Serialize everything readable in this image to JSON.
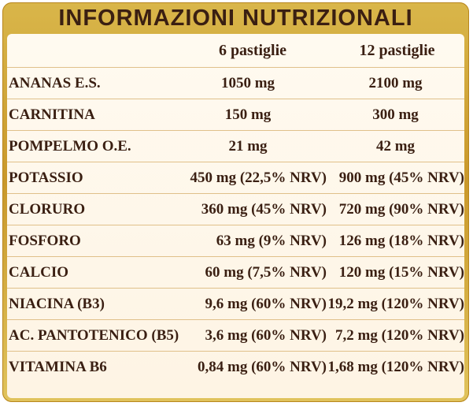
{
  "title": "INFORMAZIONI NUTRIZIONALI",
  "columns": [
    "6 pastiglie",
    "12 pastiglie"
  ],
  "rows": [
    {
      "name": "ANANAS E.S.",
      "v1": "1050 mg",
      "v2": "2100 mg"
    },
    {
      "name": "CARNITINA",
      "v1": "150 mg",
      "v2": "300 mg"
    },
    {
      "name": "POMPELMO O.E.",
      "v1": "21 mg",
      "v2": "42 mg"
    },
    {
      "name": "POTASSIO",
      "v1": "450 mg (22,5% NRV)",
      "v2": "900 mg (45% NRV)"
    },
    {
      "name": "CLORURO",
      "v1": "360 mg (45% NRV)",
      "v2": "720 mg (90% NRV)"
    },
    {
      "name": "FOSFORO",
      "v1": "63 mg (9% NRV)",
      "v2": "126 mg (18% NRV)"
    },
    {
      "name": "CALCIO",
      "v1": "60 mg (7,5% NRV)",
      "v2": "120 mg (15% NRV)"
    },
    {
      "name": "NIACINA (B3)",
      "v1": "9,6 mg (60% NRV)",
      "v2": "19,2 mg (120% NRV)"
    },
    {
      "name": "AC. PANTOTENICO (B5)",
      "v1": "3,6 mg (60% NRV)",
      "v2": "7,2 mg (120% NRV)"
    },
    {
      "name": "VITAMINA B6",
      "v1": "0,84 mg (60% NRV)",
      "v2": "1,68 mg (120% NRV)"
    }
  ],
  "colors": {
    "frame": "#c9982a",
    "text": "#3a1f12",
    "table_bg": "#fef4e4"
  }
}
